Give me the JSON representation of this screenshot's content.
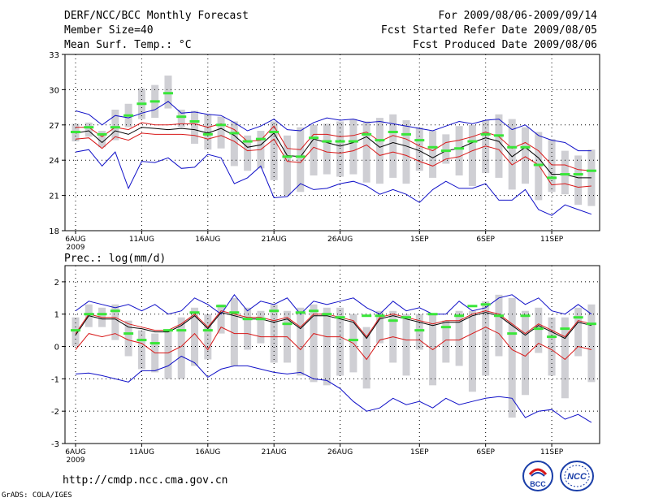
{
  "header": {
    "title": "DERF/NCC/BCC Monthly Forecast",
    "member_size": "Member Size=40",
    "variable": "Mean Surf. Temp.: °C",
    "period": "For 2009/08/06-2009/09/14",
    "refer_date": "Fcst Started Refer Date 2009/08/05",
    "produced_date": "Fcst Produced Date 2009/08/06"
  },
  "colors": {
    "box": "#cfcfd4",
    "median": "#39e639",
    "mean": "#000000",
    "spread": "#d81818",
    "range": "#1010c8",
    "grid": "#000000"
  },
  "footer": {
    "url": "http://cmdp.ncc.cma.gov.cn",
    "credit": "GrADS: COLA/IGES",
    "logo_bcc_text": "BCC",
    "logo_ncc_text": "NCC"
  },
  "chart_data": [
    {
      "type": "box-line",
      "title": "Mean Surf. Temp.: °C",
      "ylim": [
        18,
        33
      ],
      "yticks": [
        18,
        21,
        24,
        27,
        30,
        33
      ],
      "xtick_labels": [
        "6AUG\n2009",
        "11AUG",
        "16AUG",
        "21AUG",
        "26AUG",
        "1SEP",
        "6SEP",
        "11SEP"
      ],
      "xtick_days": [
        1,
        6,
        11,
        16,
        21,
        27,
        32,
        37
      ],
      "days": 40,
      "series": [
        {
          "name": "max",
          "values": [
            28.2,
            27.9,
            27.0,
            27.8,
            27.6,
            28.0,
            28.3,
            29.0,
            28.0,
            28.1,
            27.9,
            27.8,
            27.2,
            26.5,
            26.9,
            27.5,
            26.6,
            26.5,
            27.2,
            27.6,
            27.4,
            27.5,
            27.2,
            27.3,
            27.1,
            26.9,
            26.7,
            26.5,
            26.9,
            27.3,
            27.1,
            27.4,
            27.5,
            26.6,
            27.0,
            26.1,
            25.7,
            25.5,
            24.8,
            24.8
          ]
        },
        {
          "name": "upper",
          "values": [
            26.8,
            26.8,
            26.0,
            26.8,
            26.6,
            27.2,
            27.0,
            27.0,
            27.1,
            27.1,
            26.8,
            27.1,
            26.6,
            25.6,
            25.7,
            26.9,
            25.0,
            24.9,
            26.2,
            26.2,
            26.0,
            26.1,
            26.4,
            25.6,
            26.1,
            25.8,
            25.2,
            24.8,
            25.5,
            25.7,
            26.0,
            26.4,
            26.0,
            25.0,
            25.5,
            24.8,
            23.6,
            23.6,
            23.2,
            23.1
          ]
        },
        {
          "name": "mean",
          "values": [
            26.3,
            26.5,
            25.5,
            26.5,
            26.2,
            26.8,
            26.7,
            26.6,
            26.7,
            26.6,
            26.3,
            26.7,
            26.1,
            25.1,
            25.3,
            26.3,
            24.4,
            24.3,
            25.8,
            25.5,
            25.2,
            25.5,
            26.0,
            25.1,
            25.5,
            25.2,
            24.8,
            24.2,
            24.8,
            25.0,
            25.5,
            25.9,
            25.6,
            24.3,
            25.1,
            24.2,
            22.8,
            22.8,
            22.5,
            22.5
          ]
        },
        {
          "name": "lower",
          "values": [
            25.8,
            25.9,
            25.0,
            26.0,
            25.7,
            26.3,
            26.2,
            26.2,
            26.2,
            26.1,
            25.8,
            26.1,
            25.6,
            24.8,
            24.9,
            25.8,
            23.9,
            23.8,
            25.1,
            24.7,
            24.6,
            24.8,
            25.3,
            24.4,
            24.7,
            24.4,
            23.9,
            23.5,
            24.1,
            24.3,
            24.8,
            25.2,
            24.9,
            23.6,
            24.3,
            23.6,
            21.9,
            22.0,
            21.7,
            21.8
          ]
        },
        {
          "name": "min",
          "values": [
            24.7,
            24.9,
            23.5,
            24.7,
            21.6,
            23.9,
            23.8,
            24.2,
            23.3,
            23.4,
            24.5,
            24.2,
            22.0,
            22.5,
            23.5,
            20.8,
            20.9,
            22.0,
            21.5,
            21.6,
            22.0,
            22.2,
            21.8,
            21.1,
            21.5,
            21.1,
            20.4,
            21.5,
            22.2,
            21.6,
            21.6,
            22.0,
            20.6,
            20.6,
            21.5,
            19.8,
            19.3,
            20.2,
            19.8,
            19.4
          ]
        },
        {
          "name": "median",
          "values": [
            26.4,
            26.8,
            26.2,
            26.8,
            27.8,
            28.8,
            29.0,
            29.7,
            27.7,
            27.3,
            26.2,
            27.0,
            26.3,
            25.6,
            25.8,
            26.4,
            24.3,
            24.3,
            25.9,
            25.6,
            25.6,
            25.6,
            26.2,
            25.7,
            26.4,
            26.2,
            25.7,
            25.1,
            24.8,
            25.0,
            25.6,
            26.2,
            26.1,
            25.1,
            25.1,
            23.6,
            22.5,
            22.8,
            22.8,
            23.1
          ]
        }
      ],
      "boxes": [
        [
          25.6,
          27.1
        ],
        [
          26.0,
          27.2
        ],
        [
          25.1,
          26.5
        ],
        [
          25.7,
          28.3
        ],
        [
          26.8,
          28.8
        ],
        [
          27.5,
          30.1
        ],
        [
          27.6,
          30.4
        ],
        [
          28.4,
          31.2
        ],
        [
          26.8,
          28.3
        ],
        [
          25.4,
          28.2
        ],
        [
          24.9,
          27.9
        ],
        [
          25.0,
          27.7
        ],
        [
          23.5,
          27.3
        ],
        [
          23.1,
          26.1
        ],
        [
          23.3,
          26.5
        ],
        [
          22.3,
          27.3
        ],
        [
          21.0,
          26.1
        ],
        [
          21.3,
          26.8
        ],
        [
          22.7,
          27.0
        ],
        [
          22.8,
          27.1
        ],
        [
          22.6,
          27.3
        ],
        [
          22.8,
          27.5
        ],
        [
          22.1,
          27.3
        ],
        [
          22.0,
          27.6
        ],
        [
          22.5,
          27.9
        ],
        [
          22.0,
          27.4
        ],
        [
          23.1,
          26.8
        ],
        [
          22.5,
          26.5
        ],
        [
          23.7,
          26.2
        ],
        [
          22.7,
          26.9
        ],
        [
          21.8,
          27.0
        ],
        [
          22.9,
          27.4
        ],
        [
          22.5,
          27.9
        ],
        [
          21.5,
          27.5
        ],
        [
          22.0,
          26.8
        ],
        [
          20.6,
          26.4
        ],
        [
          21.3,
          25.8
        ],
        [
          21.1,
          24.8
        ],
        [
          20.2,
          24.4
        ],
        [
          20.1,
          24.9
        ]
      ]
    },
    {
      "type": "box-line",
      "title": "Prec.: log(mm/d)",
      "ylim": [
        -3,
        2.5
      ],
      "yticks": [
        -3,
        -2,
        -1,
        0,
        1,
        2
      ],
      "xtick_labels": [
        "6AUG\n2009",
        "11AUG",
        "16AUG",
        "21AUG",
        "26AUG",
        "1SEP",
        "6SEP",
        "11SEP"
      ],
      "xtick_days": [
        1,
        6,
        11,
        16,
        21,
        27,
        32,
        37
      ],
      "days": 40,
      "series": [
        {
          "name": "max",
          "values": [
            1.1,
            1.4,
            1.3,
            1.2,
            1.3,
            1.1,
            1.3,
            1.0,
            1.1,
            1.5,
            1.3,
            1.0,
            1.6,
            1.1,
            1.4,
            1.3,
            1.5,
            1.0,
            1.4,
            1.3,
            1.4,
            1.5,
            1.2,
            1.0,
            1.4,
            1.1,
            1.2,
            1.0,
            1.0,
            1.4,
            1.1,
            1.2,
            1.5,
            1.6,
            1.3,
            1.5,
            1.1,
            1.0,
            1.3,
            1.0
          ]
        },
        {
          "name": "upper",
          "values": [
            0.4,
            1.0,
            0.9,
            0.9,
            0.7,
            0.6,
            0.5,
            0.5,
            0.7,
            1.0,
            0.6,
            1.1,
            1.0,
            0.9,
            0.9,
            0.8,
            0.9,
            0.6,
            1.0,
            1.0,
            0.9,
            0.8,
            0.3,
            0.9,
            1.0,
            0.9,
            0.8,
            0.7,
            0.8,
            0.8,
            1.0,
            1.1,
            1.0,
            0.7,
            0.4,
            0.7,
            0.5,
            0.3,
            0.8,
            0.7
          ]
        },
        {
          "name": "mean",
          "values": [
            0.35,
            0.95,
            0.85,
            0.85,
            0.6,
            0.55,
            0.45,
            0.45,
            0.65,
            0.95,
            0.55,
            1.05,
            0.95,
            0.85,
            0.85,
            0.75,
            0.85,
            0.55,
            0.95,
            0.95,
            0.85,
            0.75,
            0.25,
            0.85,
            0.95,
            0.85,
            0.75,
            0.65,
            0.75,
            0.75,
            0.95,
            1.05,
            0.95,
            0.65,
            0.35,
            0.65,
            0.45,
            0.25,
            0.75,
            0.65
          ]
        },
        {
          "name": "lower",
          "values": [
            -0.1,
            0.4,
            0.3,
            0.4,
            0.2,
            0.1,
            -0.2,
            -0.2,
            0.0,
            0.4,
            -0.1,
            0.6,
            0.4,
            0.4,
            0.3,
            0.3,
            0.3,
            -0.1,
            0.4,
            0.3,
            0.3,
            0.1,
            -0.4,
            0.2,
            0.3,
            0.2,
            0.2,
            -0.1,
            0.2,
            0.2,
            0.4,
            0.6,
            0.4,
            -0.1,
            -0.3,
            0.1,
            -0.1,
            -0.4,
            0.0,
            -0.1
          ]
        },
        {
          "name": "min",
          "values": [
            -0.85,
            -0.82,
            -0.9,
            -1.0,
            -1.1,
            -0.75,
            -0.75,
            -0.6,
            -0.3,
            -0.5,
            -0.95,
            -0.7,
            -0.6,
            -0.6,
            -0.7,
            -0.8,
            -0.85,
            -0.8,
            -1.0,
            -1.05,
            -1.3,
            -1.7,
            -2.0,
            -1.9,
            -1.6,
            -1.8,
            -1.7,
            -1.9,
            -1.6,
            -1.8,
            -1.7,
            -1.6,
            -1.55,
            -1.6,
            -2.2,
            -2.0,
            -1.95,
            -2.25,
            -2.1,
            -2.35
          ]
        },
        {
          "name": "median",
          "values": [
            0.5,
            1.0,
            1.0,
            1.1,
            0.4,
            0.2,
            0.1,
            0.5,
            0.5,
            1.05,
            0.5,
            1.25,
            1.05,
            0.85,
            0.85,
            1.1,
            0.7,
            1.05,
            1.1,
            1.0,
            0.9,
            0.2,
            0.95,
            0.95,
            0.8,
            0.9,
            0.5,
            1.0,
            0.6,
            0.95,
            1.25,
            1.3,
            0.95,
            0.4,
            0.95,
            0.55,
            0.3,
            0.55,
            0.9,
            0.7
          ]
        }
      ],
      "boxes": [
        [
          0.0,
          0.9
        ],
        [
          0.6,
          1.3
        ],
        [
          0.6,
          1.2
        ],
        [
          0.2,
          1.3
        ],
        [
          -0.3,
          0.8
        ],
        [
          -0.7,
          0.5
        ],
        [
          -0.8,
          0.4
        ],
        [
          -1.0,
          0.5
        ],
        [
          -1.0,
          0.9
        ],
        [
          -0.6,
          1.2
        ],
        [
          -0.4,
          1.0
        ],
        [
          0.4,
          1.3
        ],
        [
          -0.6,
          1.5
        ],
        [
          -0.1,
          1.2
        ],
        [
          0.1,
          1.1
        ],
        [
          -0.5,
          1.3
        ],
        [
          -0.5,
          1.1
        ],
        [
          -0.9,
          1.2
        ],
        [
          -1.1,
          1.3
        ],
        [
          -1.2,
          1.2
        ],
        [
          -0.9,
          1.2
        ],
        [
          -0.8,
          1.0
        ],
        [
          -1.3,
          0.6
        ],
        [
          0.1,
          1.1
        ],
        [
          -0.5,
          1.1
        ],
        [
          -0.9,
          1.0
        ],
        [
          -0.1,
          1.0
        ],
        [
          -1.2,
          1.0
        ],
        [
          -0.5,
          0.8
        ],
        [
          -0.6,
          1.1
        ],
        [
          -1.4,
          1.1
        ],
        [
          -0.9,
          1.4
        ],
        [
          -0.3,
          1.6
        ],
        [
          -2.2,
          1.5
        ],
        [
          -1.5,
          1.1
        ],
        [
          -0.2,
          1.2
        ],
        [
          -0.9,
          0.9
        ],
        [
          -1.6,
          0.9
        ],
        [
          -0.3,
          1.2
        ],
        [
          -1.1,
          1.3
        ]
      ]
    }
  ]
}
